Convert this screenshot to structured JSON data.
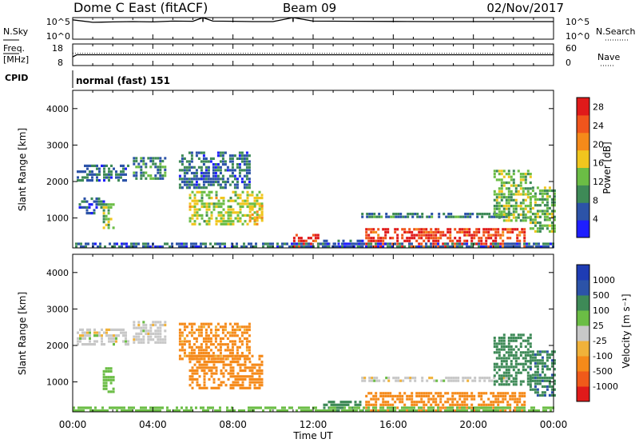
{
  "header": {
    "station": "Dome C East (fitACF)",
    "beam": "Beam 09",
    "date": "02/Nov/2017"
  },
  "time_axis": {
    "label": "Time UT",
    "tick_labels": [
      "00:00",
      "04:00",
      "08:00",
      "12:00",
      "16:00",
      "20:00",
      "00:00"
    ],
    "range_hours": [
      0,
      24
    ]
  },
  "top_strips": {
    "nsky": {
      "left_label": "N.Sky",
      "left_ticks": [
        "10^5",
        "10^0"
      ],
      "right_label": "N.Search",
      "right_ticks": [
        "10^5",
        "10^0"
      ]
    },
    "freq": {
      "left_label_1": "Freq.",
      "left_label_2": "[MHz]",
      "left_ticks": [
        "18",
        "8"
      ],
      "right_label": "Nave",
      "right_ticks": [
        "60",
        "0"
      ]
    },
    "cpid": {
      "label": "CPID",
      "value": "normal (fast) 151"
    }
  },
  "panels": {
    "power": {
      "ylabel": "Slant Range [km]",
      "colorbar_label": "Power [dB]"
    },
    "velocity": {
      "ylabel": "Slant Range [km]",
      "colorbar_label": "Velocity [m s⁻¹]"
    }
  },
  "colors": {
    "power_scale": [
      "#1e1eff",
      "#2c53a8",
      "#3e8a57",
      "#6bbd45",
      "#f0c61e",
      "#f58a1a",
      "#f0551c",
      "#e01a1a"
    ],
    "velocity_scale": [
      "#e01a1a",
      "#f05a1a",
      "#f58a1a",
      "#f0b23a",
      "#c8c8c8",
      "#6bbd45",
      "#3e8a57",
      "#2c53a8",
      "#1e3cb4"
    ]
  },
  "chart_data": [
    {
      "type": "line",
      "title": "Dome C East (fitACF)",
      "name": "N.Sky / N.Search",
      "x_unit": "hours UT",
      "yscale": "log",
      "ylim": [
        1,
        100000
      ],
      "y_ticks": [
        "10^0",
        "10^5"
      ],
      "points": [
        [
          0,
          30000
        ],
        [
          1,
          8000
        ],
        [
          2,
          10000
        ],
        [
          3,
          12000
        ],
        [
          4,
          10000
        ],
        [
          5,
          15000
        ],
        [
          6,
          14000
        ],
        [
          6.5,
          100000
        ],
        [
          7,
          15000
        ],
        [
          8,
          14000
        ],
        [
          9,
          12000
        ],
        [
          10,
          12000
        ],
        [
          11,
          100000
        ],
        [
          12,
          15000
        ],
        [
          14,
          14000
        ],
        [
          16,
          13000
        ],
        [
          18,
          12000
        ],
        [
          20,
          12000
        ],
        [
          22,
          12000
        ],
        [
          24,
          12000
        ]
      ]
    },
    {
      "type": "line",
      "name": "Freq. / Nave",
      "x_unit": "hours UT",
      "y_unit": "MHz",
      "ylim": [
        8,
        18
      ],
      "y_ticks": [
        8,
        18
      ],
      "right_ticks": [
        0,
        60
      ],
      "points": [
        [
          0,
          12
        ],
        [
          0.2,
          13
        ],
        [
          4,
          13
        ],
        [
          8,
          13
        ],
        [
          12,
          13
        ],
        [
          16,
          13
        ],
        [
          20,
          13
        ],
        [
          24,
          13
        ]
      ]
    },
    {
      "type": "table",
      "label": "CPID",
      "segments": [
        {
          "from_hour": 0,
          "to_hour": 24,
          "text": "normal (fast) 151"
        }
      ]
    },
    {
      "type": "heatmap",
      "name": "Power",
      "ylabel": "Slant Range [km]",
      "xlabel": "Time UT",
      "xlim": [
        0,
        24
      ],
      "ylim": [
        180,
        4500
      ],
      "y_ticks": [
        1000,
        2000,
        3000,
        4000
      ],
      "colorbar": {
        "label": "Power [dB]",
        "ticks": [
          4,
          8,
          12,
          16,
          20,
          24,
          28
        ],
        "range": [
          0,
          30
        ]
      },
      "regions": [
        {
          "t0": 0.2,
          "t1": 2.8,
          "r0": 2000,
          "r1": 2450,
          "value": 7
        },
        {
          "t0": 1.5,
          "t1": 2.0,
          "r0": 700,
          "r1": 1400,
          "value": 14
        },
        {
          "t0": 0.3,
          "t1": 1.5,
          "r0": 1100,
          "r1": 1500,
          "value": 6
        },
        {
          "t0": 3.0,
          "t1": 4.6,
          "r0": 2050,
          "r1": 2650,
          "value": 9
        },
        {
          "t0": 5.3,
          "t1": 8.8,
          "r0": 1800,
          "r1": 2800,
          "value": 7
        },
        {
          "t0": 5.8,
          "t1": 9.5,
          "r0": 800,
          "r1": 1750,
          "value": 15
        },
        {
          "t0": 8.8,
          "t1": 9.5,
          "r0": 900,
          "r1": 1300,
          "value": 18
        },
        {
          "t0": 11.0,
          "t1": 12.3,
          "r0": 180,
          "r1": 500,
          "value": 26
        },
        {
          "t0": 12.5,
          "t1": 14.5,
          "r0": 180,
          "r1": 400,
          "value": 7
        },
        {
          "t0": 14.4,
          "t1": 22.0,
          "r0": 1000,
          "r1": 1120,
          "value": 8
        },
        {
          "t0": 14.6,
          "t1": 22.5,
          "r0": 180,
          "r1": 700,
          "value": 26
        },
        {
          "t0": 21.0,
          "t1": 22.8,
          "r0": 900,
          "r1": 2300,
          "value": 13
        },
        {
          "t0": 22.8,
          "t1": 24.0,
          "r0": 600,
          "r1": 1800,
          "value": 12
        },
        {
          "t0": 0.0,
          "t1": 24.0,
          "r0": 180,
          "r1": 330,
          "value": 6
        }
      ]
    },
    {
      "type": "heatmap",
      "name": "Velocity",
      "ylabel": "Slant Range [km]",
      "xlabel": "Time UT",
      "xlim": [
        0,
        24
      ],
      "ylim": [
        180,
        4500
      ],
      "y_ticks": [
        1000,
        2000,
        3000,
        4000
      ],
      "colorbar": {
        "label": "Velocity [m s⁻¹]",
        "ticks": [
          -1000,
          -500,
          -100,
          -25,
          25,
          100,
          500,
          1000
        ]
      },
      "regions": [
        {
          "t0": 0.2,
          "t1": 2.8,
          "r0": 2000,
          "r1": 2450,
          "value": 0
        },
        {
          "t0": 1.5,
          "t1": 2.0,
          "r0": 700,
          "r1": 1400,
          "value": 60
        },
        {
          "t0": 3.0,
          "t1": 4.6,
          "r0": 2050,
          "r1": 2650,
          "value": 0
        },
        {
          "t0": 5.3,
          "t1": 8.8,
          "r0": 1600,
          "r1": 2600,
          "value": -150
        },
        {
          "t0": 5.8,
          "t1": 9.5,
          "r0": 800,
          "r1": 1700,
          "value": -300
        },
        {
          "t0": 12.5,
          "t1": 14.5,
          "r0": 180,
          "r1": 450,
          "value": 150
        },
        {
          "t0": 14.4,
          "t1": 22.0,
          "r0": 1000,
          "r1": 1120,
          "value": 0
        },
        {
          "t0": 14.6,
          "t1": 22.5,
          "r0": 180,
          "r1": 700,
          "value": -200
        },
        {
          "t0": 21.0,
          "t1": 22.8,
          "r0": 900,
          "r1": 2300,
          "value": 300
        },
        {
          "t0": 22.8,
          "t1": 24.0,
          "r0": 600,
          "r1": 1800,
          "value": 400
        },
        {
          "t0": 0.0,
          "t1": 24.0,
          "r0": 180,
          "r1": 330,
          "value": 60
        }
      ]
    }
  ]
}
